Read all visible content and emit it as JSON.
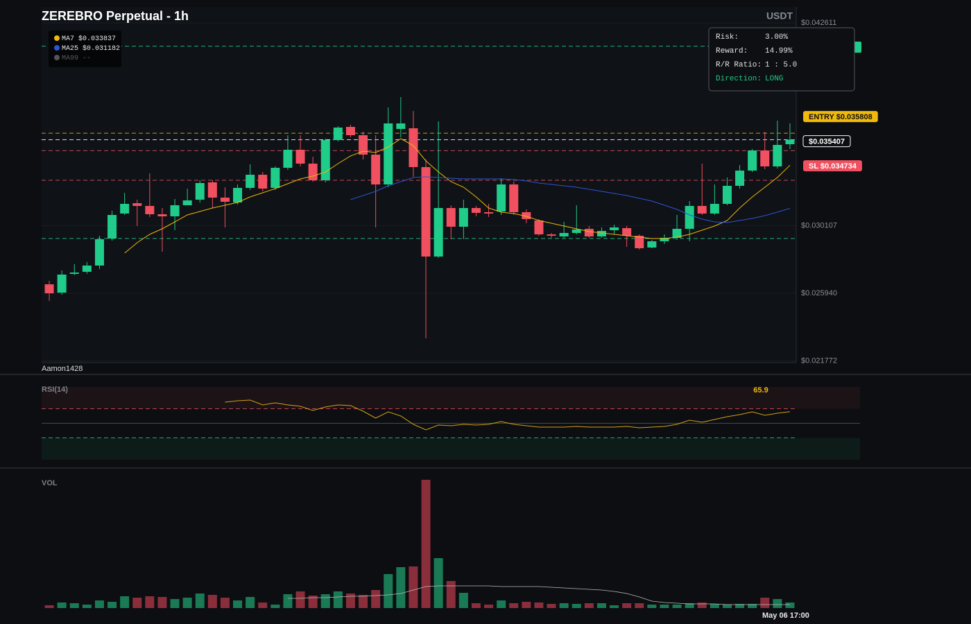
{
  "header": {
    "title": "ZEREBRO Perpetual - 1h",
    "currency": "USDT",
    "watermark": "Aamon1428"
  },
  "chart_data": [
    {
      "type": "candlestick",
      "categories": [
        null,
        null,
        null,
        null,
        null,
        null,
        null,
        null,
        null,
        null,
        null,
        null,
        null,
        null,
        null,
        null,
        null,
        null,
        null,
        null,
        null,
        null,
        null,
        null,
        null,
        null,
        null,
        null,
        null,
        null,
        null,
        null,
        null,
        null,
        null,
        null,
        null,
        null,
        null,
        null,
        null,
        null,
        null,
        null,
        null,
        null,
        null,
        null,
        null,
        null,
        null,
        null,
        null,
        null,
        null,
        null,
        null,
        null,
        null,
        "May 06 17:00"
      ],
      "open": [
        0.026494,
        0.025981,
        0.027136,
        0.027264,
        0.027649,
        0.029316,
        0.030855,
        0.031496,
        0.031325,
        0.030812,
        0.030684,
        0.031368,
        0.03171,
        0.032779,
        0.031838,
        0.031539,
        0.032437,
        0.033249,
        0.032437,
        0.033676,
        0.034788,
        0.033933,
        0.032907,
        0.035386,
        0.036199,
        0.035686,
        0.034489,
        0.03265,
        0.03607,
        0.036113,
        0.033719,
        0.028204,
        0.031197,
        0.030043,
        0.031197,
        0.03094,
        0.030983,
        0.03265,
        0.03094,
        0.030427,
        0.029572,
        0.029444,
        0.029658,
        0.029914,
        0.029444,
        0.029829,
        0.029957,
        0.029487,
        0.02876,
        0.029145,
        0.029359,
        0.029914,
        0.031325,
        0.030855,
        0.031453,
        0.032565,
        0.033505,
        0.034745,
        0.033762,
        0.03513
      ],
      "high": [
        0.026708,
        0.027349,
        0.027734,
        0.027862,
        0.029487,
        0.031026,
        0.032137,
        0.03171,
        0.033334,
        0.031197,
        0.031753,
        0.032394,
        0.032907,
        0.032907,
        0.032479,
        0.03265,
        0.03389,
        0.03342,
        0.033762,
        0.035686,
        0.035686,
        0.03436,
        0.035472,
        0.036241,
        0.036327,
        0.035899,
        0.035686,
        0.037396,
        0.038037,
        0.037182,
        0.034189,
        0.036541,
        0.031368,
        0.03171,
        0.031325,
        0.031453,
        0.033035,
        0.032821,
        0.031111,
        0.030513,
        0.029658,
        0.030342,
        0.031368,
        0.030085,
        0.03,
        0.030171,
        0.030085,
        0.029572,
        0.02923,
        0.029572,
        0.030769,
        0.031624,
        0.033933,
        0.03265,
        0.033078,
        0.033847,
        0.034831,
        0.035899,
        0.036583,
        0.036412
      ],
      "low": [
        0.025468,
        0.025853,
        0.02705,
        0.027136,
        0.027435,
        0.029188,
        0.030769,
        0.030085,
        0.030641,
        0.028504,
        0.029829,
        0.031368,
        0.031539,
        0.031197,
        0.03,
        0.031411,
        0.032308,
        0.032223,
        0.032308,
        0.033548,
        0.033762,
        0.032821,
        0.032779,
        0.035301,
        0.035557,
        0.034189,
        0.03,
        0.032479,
        0.035557,
        0.033121,
        0.02316,
        0.028119,
        0.029273,
        0.029273,
        0.030684,
        0.030641,
        0.030769,
        0.030769,
        0.030256,
        0.029487,
        0.029359,
        0.029359,
        0.029572,
        0.029359,
        0.029359,
        0.029572,
        0.028803,
        0.028632,
        0.028717,
        0.028974,
        0.02923,
        0.029145,
        0.030769,
        0.030769,
        0.031368,
        0.032394,
        0.03342,
        0.033591,
        0.033634,
        0.034831
      ],
      "close": [
        0.025939,
        0.027093,
        0.027221,
        0.027649,
        0.029273,
        0.030769,
        0.031453,
        0.031325,
        0.030812,
        0.030684,
        0.031368,
        0.031667,
        0.032736,
        0.031838,
        0.031582,
        0.032437,
        0.033249,
        0.032394,
        0.033676,
        0.034788,
        0.033933,
        0.032907,
        0.035386,
        0.036156,
        0.035686,
        0.034489,
        0.03265,
        0.036412,
        0.036412,
        0.033719,
        0.028204,
        0.031197,
        0.030043,
        0.031197,
        0.030898,
        0.030855,
        0.03265,
        0.03094,
        0.030513,
        0.029572,
        0.029487,
        0.029658,
        0.029872,
        0.029444,
        0.029786,
        0.03,
        0.029487,
        0.028717,
        0.029145,
        0.029359,
        0.029914,
        0.031325,
        0.030855,
        0.031453,
        0.032565,
        0.033505,
        0.034745,
        0.033762,
        0.035087,
        0.035407
      ],
      "up_color": "#1fcc8a",
      "down_color": "#f0505f",
      "ylim": [
        0.021665,
        0.043594
      ],
      "yticks": [
        {
          "value": 0.042611,
          "label": "$0.042611"
        },
        {
          "value": 0.030107,
          "label": "$0.030107"
        },
        {
          "value": 0.02594,
          "label": "$0.025940"
        },
        {
          "value": 0.021772,
          "label": "$0.021772"
        }
      ],
      "grid": true,
      "moving_averages": [
        {
          "name": "MA7",
          "color": "#f0b90b",
          "value_label": "$0.033837",
          "values": [
            null,
            null,
            null,
            null,
            null,
            null,
            0.028418,
            0.029059,
            0.029572,
            0.029914,
            0.030342,
            0.030769,
            0.030983,
            0.031197,
            0.031368,
            0.031539,
            0.031881,
            0.032137,
            0.032394,
            0.032693,
            0.032992,
            0.033163,
            0.03342,
            0.033933,
            0.034403,
            0.034702,
            0.034617,
            0.034959,
            0.035472,
            0.035044,
            0.034104,
            0.03342,
            0.032821,
            0.032479,
            0.031881,
            0.031197,
            0.03094,
            0.030855,
            0.030684,
            0.030427,
            0.030256,
            0.030085,
            0.029914,
            0.029743,
            0.029658,
            0.029572,
            0.029487,
            0.029401,
            0.029316,
            0.029316,
            0.029401,
            0.029572,
            0.029829,
            0.030085,
            0.030427,
            0.031197,
            0.031881,
            0.032479,
            0.033078,
            0.033837
          ]
        },
        {
          "name": "MA25",
          "color": "#2f55d4",
          "value_label": "$0.031182",
          "values": [
            null,
            null,
            null,
            null,
            null,
            null,
            null,
            null,
            null,
            null,
            null,
            null,
            null,
            null,
            null,
            null,
            null,
            null,
            null,
            null,
            null,
            null,
            null,
            null,
            0.03171,
            0.031966,
            0.032223,
            0.032565,
            0.032821,
            0.033078,
            0.033121,
            0.033078,
            0.033035,
            0.032992,
            0.032992,
            0.032992,
            0.032992,
            0.03295,
            0.032864,
            0.032736,
            0.03265,
            0.032565,
            0.032479,
            0.032351,
            0.032223,
            0.032095,
            0.031966,
            0.031795,
            0.031624,
            0.031368,
            0.031111,
            0.030769,
            0.030513,
            0.030342,
            0.030299,
            0.030427,
            0.030556,
            0.030727,
            0.03094,
            0.031182
          ]
        },
        {
          "name": "MA99",
          "color": "#555555",
          "value_label": "--"
        }
      ],
      "levels": [
        {
          "value": 0.041176,
          "color": "#1fcc8a"
        },
        {
          "value": 0.035808,
          "label": "ENTRY $0.035808",
          "color": "#f0b90b"
        },
        {
          "value": 0.035407,
          "label": "$0.035407",
          "color": "#ffffff"
        },
        {
          "value": 0.034734,
          "label": "SL $0.034734",
          "color": "#f0505f"
        },
        {
          "value": 0.032907,
          "color": "#f0505f"
        },
        {
          "value": 0.029316,
          "color": "#1fcc8a"
        }
      ]
    },
    {
      "type": "line",
      "title": "RSI(14)",
      "color": "#d4a017",
      "ylim": [
        0,
        100
      ],
      "levels": [
        70,
        50,
        30
      ],
      "values": [
        null,
        null,
        null,
        null,
        null,
        null,
        null,
        null,
        null,
        null,
        null,
        null,
        null,
        null,
        79.0,
        81.0,
        81.9,
        75.2,
        78.1,
        75.2,
        73.3,
        67.6,
        72.4,
        75.2,
        74.3,
        66.7,
        57.1,
        65.7,
        60.0,
        48.6,
        41.0,
        47.6,
        46.7,
        48.6,
        47.6,
        48.6,
        52.4,
        48.6,
        46.7,
        44.8,
        44.8,
        44.8,
        45.7,
        44.8,
        44.8,
        44.8,
        45.7,
        43.8,
        44.8,
        45.7,
        48.6,
        54.3,
        51.4,
        55.2,
        59.0,
        61.9,
        65.7,
        61.0,
        63.8,
        65.9
      ]
    },
    {
      "type": "bar",
      "title": "VOL",
      "up_color": "#1a7a55",
      "down_color": "#8a2e3b",
      "ylim": [
        0,
        190
      ],
      "values": [
        4,
        8,
        7,
        5,
        11,
        9,
        17,
        15,
        17,
        16,
        13,
        15,
        21,
        19,
        15,
        11,
        16,
        8,
        5,
        20,
        24,
        18,
        20,
        24,
        21,
        19,
        26,
        49,
        59,
        60,
        185,
        72,
        39,
        22,
        7,
        5,
        11,
        7,
        9,
        8,
        6,
        7,
        6,
        7,
        7,
        4,
        7,
        7,
        5,
        5,
        5,
        7,
        8,
        6,
        5,
        6,
        6,
        15,
        13,
        8
      ],
      "average": {
        "color": "#bbbbbb",
        "values": [
          null,
          null,
          null,
          null,
          null,
          null,
          null,
          null,
          null,
          null,
          null,
          null,
          null,
          null,
          null,
          null,
          null,
          null,
          null,
          14,
          14,
          15,
          15,
          16,
          17,
          17,
          18,
          19,
          21,
          26,
          31,
          32,
          32,
          32,
          32,
          32,
          31,
          31,
          31,
          31,
          30,
          29,
          28,
          27,
          26,
          24,
          21,
          16,
          10,
          8,
          7,
          6,
          6,
          6,
          5,
          5,
          5,
          5,
          5,
          5
        ]
      }
    }
  ],
  "risk_panel": {
    "rows": [
      [
        "Risk:",
        "3.00%"
      ],
      [
        "Reward:",
        "14.99%"
      ],
      [
        "R/R Ratio:",
        "1 : 5.0"
      ],
      [
        "Direction:",
        "LONG"
      ]
    ]
  }
}
